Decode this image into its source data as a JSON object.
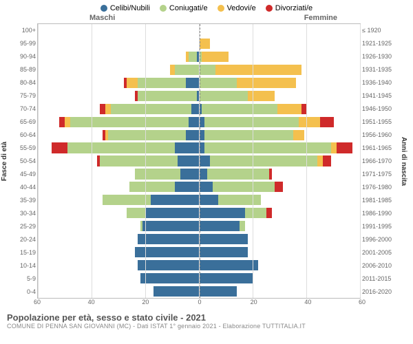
{
  "legend": [
    {
      "label": "Celibi/Nubili",
      "color": "#3a6f9a"
    },
    {
      "label": "Coniugati/e",
      "color": "#b4d28b"
    },
    {
      "label": "Vedovi/e",
      "color": "#f4c04e"
    },
    {
      "label": "Divorziati/e",
      "color": "#cf2a2a"
    }
  ],
  "headers": {
    "m": "Maschi",
    "f": "Femmine"
  },
  "axis_labels": {
    "left": "Fasce di età",
    "right": "Anni di nascita"
  },
  "axis": {
    "max": 60,
    "ticks": [
      60,
      40,
      20,
      0,
      20,
      40,
      60
    ]
  },
  "colors": {
    "grid": "#ddd",
    "center": "#888",
    "tick_text": "#666",
    "title": "#555",
    "sub": "#888"
  },
  "rows": [
    {
      "age": "100+",
      "birth": "≤ 1920",
      "m": [
        0,
        0,
        0,
        0
      ],
      "f": [
        0,
        0,
        0,
        0
      ]
    },
    {
      "age": "95-99",
      "birth": "1921-1925",
      "m": [
        0,
        0,
        0,
        0
      ],
      "f": [
        0,
        0,
        4,
        0
      ]
    },
    {
      "age": "90-94",
      "birth": "1926-1930",
      "m": [
        1,
        3,
        1,
        0
      ],
      "f": [
        0,
        1,
        10,
        0
      ]
    },
    {
      "age": "85-89",
      "birth": "1931-1935",
      "m": [
        0,
        9,
        2,
        0
      ],
      "f": [
        0,
        6,
        32,
        0
      ]
    },
    {
      "age": "80-84",
      "birth": "1936-1940",
      "m": [
        5,
        18,
        4,
        1
      ],
      "f": [
        0,
        14,
        22,
        0
      ]
    },
    {
      "age": "75-79",
      "birth": "1941-1945",
      "m": [
        1,
        22,
        0,
        1
      ],
      "f": [
        0,
        18,
        10,
        0
      ]
    },
    {
      "age": "70-74",
      "birth": "1946-1950",
      "m": [
        3,
        30,
        2,
        2
      ],
      "f": [
        1,
        28,
        9,
        2
      ]
    },
    {
      "age": "65-69",
      "birth": "1951-1955",
      "m": [
        4,
        44,
        2,
        2
      ],
      "f": [
        2,
        35,
        8,
        5
      ]
    },
    {
      "age": "60-64",
      "birth": "1956-1960",
      "m": [
        5,
        29,
        1,
        1
      ],
      "f": [
        2,
        33,
        4,
        0
      ]
    },
    {
      "age": "55-59",
      "birth": "1961-1965",
      "m": [
        9,
        40,
        0,
        6
      ],
      "f": [
        2,
        47,
        2,
        6
      ]
    },
    {
      "age": "50-54",
      "birth": "1966-1970",
      "m": [
        8,
        29,
        0,
        1
      ],
      "f": [
        4,
        40,
        2,
        3
      ]
    },
    {
      "age": "45-49",
      "birth": "1971-1975",
      "m": [
        7,
        17,
        0,
        0
      ],
      "f": [
        3,
        23,
        0,
        1
      ]
    },
    {
      "age": "40-44",
      "birth": "1976-1980",
      "m": [
        9,
        17,
        0,
        0
      ],
      "f": [
        5,
        23,
        0,
        3
      ]
    },
    {
      "age": "35-39",
      "birth": "1981-1985",
      "m": [
        18,
        18,
        0,
        0
      ],
      "f": [
        7,
        16,
        0,
        0
      ]
    },
    {
      "age": "30-34",
      "birth": "1986-1990",
      "m": [
        20,
        7,
        0,
        0
      ],
      "f": [
        17,
        8,
        0,
        2
      ]
    },
    {
      "age": "25-29",
      "birth": "1991-1995",
      "m": [
        21,
        1,
        0,
        0
      ],
      "f": [
        15,
        2,
        0,
        0
      ]
    },
    {
      "age": "20-24",
      "birth": "1996-2000",
      "m": [
        23,
        0,
        0,
        0
      ],
      "f": [
        18,
        0,
        0,
        0
      ]
    },
    {
      "age": "15-19",
      "birth": "2001-2005",
      "m": [
        24,
        0,
        0,
        0
      ],
      "f": [
        18,
        0,
        0,
        0
      ]
    },
    {
      "age": "10-14",
      "birth": "2006-2010",
      "m": [
        23,
        0,
        0,
        0
      ],
      "f": [
        22,
        0,
        0,
        0
      ]
    },
    {
      "age": "5-9",
      "birth": "2011-2015",
      "m": [
        22,
        0,
        0,
        0
      ],
      "f": [
        20,
        0,
        0,
        0
      ]
    },
    {
      "age": "0-4",
      "birth": "2016-2020",
      "m": [
        17,
        0,
        0,
        0
      ],
      "f": [
        14,
        0,
        0,
        0
      ]
    }
  ],
  "footer": {
    "title": "Popolazione per età, sesso e stato civile - 2021",
    "sub": "COMUNE DI PENNA SAN GIOVANNI (MC) - Dati ISTAT 1° gennaio 2021 - Elaborazione TUTTITALIA.IT"
  }
}
